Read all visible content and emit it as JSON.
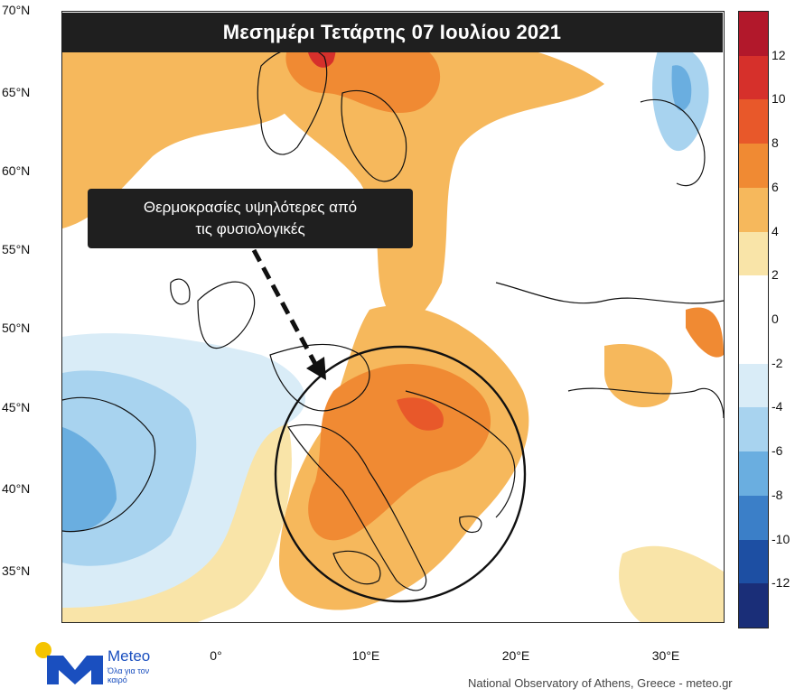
{
  "title": "Μεσημέρι Τετάρτης 07 Ιουλίου 2021",
  "callout": {
    "line1": "Θερμοκρασίες υψηλότερες από",
    "line2": "τις φυσιολογικές"
  },
  "latitude_labels": [
    "70°N",
    "65°N",
    "60°N",
    "55°N",
    "50°N",
    "45°N",
    "40°N",
    "35°N"
  ],
  "longitude_labels": [
    "0°",
    "10°E",
    "20°E",
    "30°E"
  ],
  "colorbar": {
    "tick_labels": [
      "12",
      "10",
      "8",
      "6",
      "4",
      "2",
      "0",
      "-2",
      "-4",
      "-6",
      "-8",
      "-10",
      "-12"
    ],
    "colors": [
      "#b2182b",
      "#d6302b",
      "#e8582a",
      "#f08a33",
      "#f6b85c",
      "#f9e4a8",
      "#ffffff",
      "#ffffff",
      "#d9ecf7",
      "#a8d3ef",
      "#6aaee0",
      "#3b7fc8",
      "#1d4fa3",
      "#1a2e78"
    ]
  },
  "logo": {
    "name": "Meteo",
    "tagline": "Όλα για τον καιρό"
  },
  "credit": "National Observatory of Athens, Greece - meteo.gr",
  "icons": [
    "sun-icon",
    "meteo-m-logo-icon",
    "arrow-icon"
  ]
}
